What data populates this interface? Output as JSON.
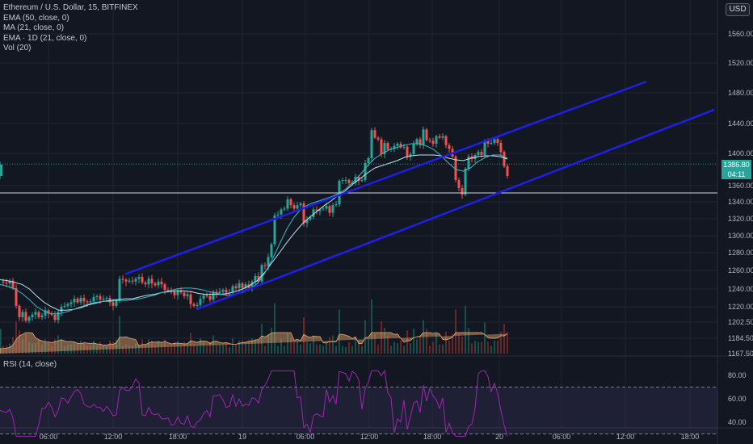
{
  "header": {
    "symbol_line": "Ethereum / U.S. Dollar, 15, BITFINEX",
    "indicators": [
      "EMA (50, close, 0)",
      "MA (21, close, 0)",
      "EMA · 1D (21, close, 0)",
      "Vol (20)"
    ],
    "currency": "USD"
  },
  "rsi": {
    "label": "RSI (14, close)",
    "ticks": [
      "80.00",
      "60.00",
      "40.00"
    ]
  },
  "price_labels": {
    "last": "1386.80",
    "countdown": "04:11"
  },
  "colors": {
    "background": "#131722",
    "up": "#26a69a",
    "down": "#ef5350",
    "channel": "#1f1fe6",
    "ema50": "#b8e6f0",
    "ma21": "#3fb8c8",
    "rsi": "#9c27b0",
    "volume_ma": "#e9a86f",
    "hline": "#d1d4dc"
  },
  "chart_data": {
    "type": "line",
    "symbol": "Ethereum / U.S. Dollar",
    "interval": "15",
    "exchange": "BITFINEX",
    "ylim": [
      1167.5,
      1600
    ],
    "yticks": [
      "1560.00",
      "1520.00",
      "1480.00",
      "1440.00",
      "1400.00",
      "1360.00",
      "1340.00",
      "1320.00",
      "1300.00",
      "1280.00",
      "1260.00",
      "1240.00",
      "1220.00",
      "1202.50",
      "1184.50",
      "1167.50"
    ],
    "xticks": [
      "06:00",
      "12:00",
      "18:00",
      "19",
      "06:00",
      "12:00",
      "18:00",
      "20",
      "06:00",
      "12:00",
      "18:00"
    ],
    "price_series": {
      "t": [
        0,
        2,
        4,
        6,
        8,
        10,
        12,
        14,
        16,
        18,
        20,
        22,
        24,
        26,
        28,
        30,
        32,
        34,
        36,
        38,
        40,
        42,
        44,
        46,
        48,
        50,
        52,
        54,
        56,
        58,
        60,
        62,
        64,
        66,
        68,
        70,
        72,
        74,
        76,
        78,
        80,
        82,
        84,
        86,
        88,
        90,
        92,
        94,
        96,
        98,
        100,
        102,
        104,
        106,
        108,
        110,
        112,
        114,
        116,
        118,
        120,
        122,
        124,
        126,
        128,
        130,
        132,
        134,
        136,
        138,
        140,
        142,
        144,
        146,
        148,
        150,
        152,
        154,
        156,
        158,
        160,
        162,
        164,
        166,
        168,
        170,
        172,
        174,
        176,
        178,
        180,
        182,
        184,
        186,
        188,
        190,
        192,
        194,
        196,
        198,
        200,
        202,
        204,
        206,
        208,
        210,
        212,
        214,
        216,
        218,
        220,
        222,
        224,
        226,
        228,
        230,
        232,
        234,
        236,
        238,
        240,
        242,
        244,
        246,
        248,
        250,
        252,
        254,
        256,
        258,
        260,
        262,
        264,
        266,
        268,
        270,
        272,
        274,
        276,
        278,
        280,
        282,
        284,
        286,
        288,
        290,
        292,
        294,
        296,
        298,
        300,
        302,
        304,
        306,
        308,
        310,
        312,
        314
      ],
      "v": [
        1248,
        1247,
        1246,
        1249,
        1241,
        1221,
        1208,
        1214,
        1204,
        1208,
        1211,
        1214,
        1208,
        1210,
        1216,
        1212,
        1211,
        1205,
        1214,
        1220,
        1221,
        1223,
        1225,
        1229,
        1225,
        1230,
        1226,
        1225,
        1226,
        1231,
        1232,
        1228,
        1229,
        1230,
        1225,
        1221,
        1227,
        1251,
        1250,
        1248,
        1249,
        1248,
        1251,
        1253,
        1247,
        1245,
        1251,
        1246,
        1244,
        1248,
        1245,
        1239,
        1238,
        1237,
        1233,
        1238,
        1236,
        1232,
        1234,
        1223,
        1221,
        1222,
        1229,
        1233,
        1232,
        1228,
        1237,
        1235,
        1237,
        1239,
        1236,
        1236,
        1243,
        1241,
        1246,
        1241,
        1245,
        1241,
        1248,
        1254,
        1248,
        1266,
        1265,
        1275,
        1290,
        1324,
        1325,
        1331,
        1332,
        1343,
        1336,
        1332,
        1336,
        1338,
        1315,
        1319,
        1322,
        1331,
        1329,
        1331,
        1332,
        1335,
        1327,
        1336,
        1337,
        1366,
        1367,
        1367,
        1363,
        1364,
        1371,
        1366,
        1367,
        1388,
        1394,
        1431,
        1421,
        1419,
        1399,
        1414,
        1405,
        1406,
        1410,
        1413,
        1408,
        1409,
        1396,
        1399,
        1413,
        1419,
        1411,
        1432,
        1418,
        1417,
        1413,
        1423,
        1421,
        1423,
        1411,
        1406,
        1396,
        1367,
        1357,
        1349,
        1381,
        1396,
        1393,
        1398,
        1402,
        1398,
        1417,
        1413,
        1414,
        1419,
        1414,
        1402,
        1384,
        1372,
        1386
      ]
    },
    "ema50": [
      1250,
      1249,
      1247,
      1245,
      1240,
      1232,
      1225,
      1220,
      1216,
      1216,
      1217,
      1219,
      1222,
      1224,
      1226,
      1227,
      1228,
      1229,
      1229,
      1231,
      1233,
      1234,
      1236,
      1237,
      1238,
      1238,
      1237,
      1235,
      1234,
      1234,
      1234,
      1235,
      1237,
      1240,
      1244,
      1249,
      1258,
      1269,
      1280,
      1292,
      1303,
      1313,
      1321,
      1328,
      1335,
      1341,
      1348,
      1354,
      1362,
      1369,
      1376,
      1382,
      1385,
      1388,
      1391,
      1395,
      1397,
      1398,
      1398,
      1398,
      1397,
      1394,
      1392,
      1391,
      1394,
      1396,
      1397,
      1397,
      1396,
      1393
    ],
    "ma21": [
      1245,
      1243,
      1240,
      1235,
      1228,
      1220,
      1215,
      1212,
      1212,
      1214,
      1217,
      1220,
      1223,
      1225,
      1226,
      1226,
      1227,
      1227,
      1228,
      1229,
      1231,
      1233,
      1236,
      1238,
      1240,
      1241,
      1241,
      1240,
      1238,
      1236,
      1234,
      1233,
      1234,
      1236,
      1240,
      1246,
      1257,
      1272,
      1290,
      1308,
      1322,
      1332,
      1337,
      1340,
      1343,
      1346,
      1350,
      1356,
      1364,
      1374,
      1385,
      1394,
      1400,
      1405,
      1408,
      1411,
      1413,
      1413,
      1410,
      1405,
      1397,
      1388,
      1380,
      1378,
      1382,
      1390,
      1395,
      1398,
      1398,
      1394
    ],
    "channel_upper": {
      "points": [
        [
          155,
          1256
        ],
        [
          800,
          1495
        ]
      ]
    },
    "channel_lower": {
      "points": [
        [
          243,
          1217
        ],
        [
          884,
          1458
        ]
      ]
    },
    "horizontal_level": 1351,
    "last_price": 1386.8,
    "rsi": {
      "ylim": [
        25,
        85
      ],
      "overbought": 70,
      "oversold": 30
    }
  }
}
